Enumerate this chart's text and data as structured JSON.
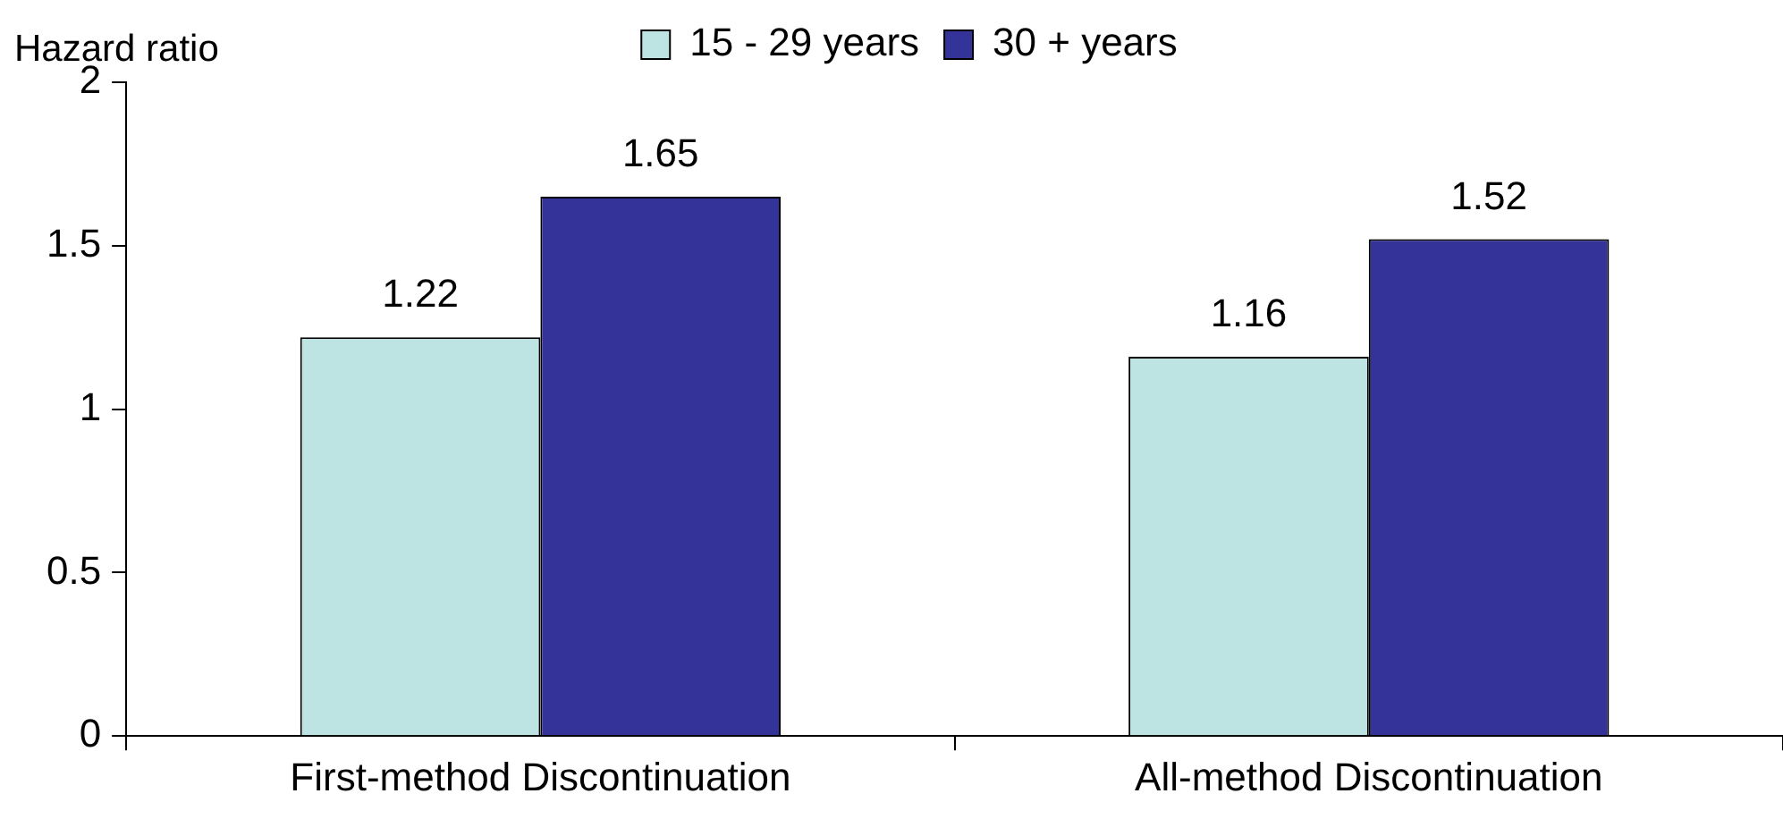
{
  "chart_data": {
    "type": "bar",
    "ylabel": "Hazard ratio",
    "categories": [
      "First-method Discontinuation",
      "All-method Discontinuation"
    ],
    "series": [
      {
        "name": "15 - 29 years",
        "color": "#bde3e3",
        "values": [
          1.22,
          1.16
        ]
      },
      {
        "name": "30 + years",
        "color": "#333399",
        "values": [
          1.65,
          1.52
        ]
      }
    ],
    "ylim": [
      0,
      2
    ],
    "yticks": [
      0,
      0.5,
      1,
      1.5,
      2
    ],
    "legend": "top",
    "data_labels": true
  }
}
